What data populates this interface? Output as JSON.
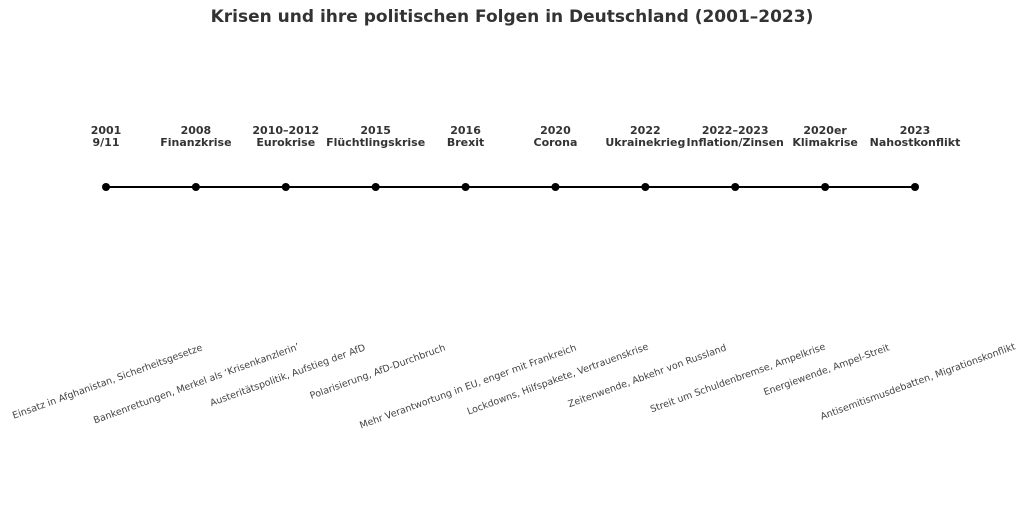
{
  "chart_data": {
    "type": "timeline",
    "title": "Krisen und ihre politischen Folgen in Deutschland (2001–2023)",
    "events": [
      {
        "year": "2001",
        "label": "9/11",
        "consequence": "Einsatz in Afghanistan, Sicherheitsgesetze"
      },
      {
        "year": "2008",
        "label": "Finanzkrise",
        "consequence": "Bankenrettungen, Merkel als ‘Krisenkanzlerin’"
      },
      {
        "year": "2010–2012",
        "label": "Eurokrise",
        "consequence": "Austeritätspolitik, Aufstieg der AfD"
      },
      {
        "year": "2015",
        "label": "Flüchtlingskrise",
        "consequence": "Polarisierung, AfD-Durchbruch"
      },
      {
        "year": "2016",
        "label": "Brexit",
        "consequence": "Mehr Verantwortung in EU, enger mit Frankreich"
      },
      {
        "year": "2020",
        "label": "Corona",
        "consequence": "Lockdowns, Hilfspakete, Vertrauenskrise"
      },
      {
        "year": "2022",
        "label": "Ukrainekrieg",
        "consequence": "Zeitenwende, Abkehr von Russland"
      },
      {
        "year": "2022–2023",
        "label": "Inflation/Zinsen",
        "consequence": "Streit um Schuldenbremse, Ampelkrise"
      },
      {
        "year": "2020er",
        "label": "Klimakrise",
        "consequence": "Energiewende, Ampel-Streit"
      },
      {
        "year": "2023",
        "label": "Nahostkonflikt",
        "consequence": "Antisemitismusdebatten, Migrationskonflikt"
      }
    ],
    "colors": {
      "line": "#000000",
      "marker": "#000000",
      "text": "#333333",
      "consequence_text": "#444444"
    }
  }
}
